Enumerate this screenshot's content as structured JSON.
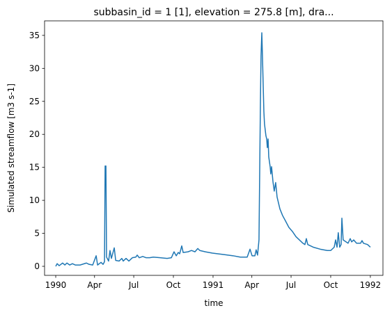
{
  "chart_data": {
    "type": "line",
    "title": "subbasin_id = 1 [1], elevation = 275.8 [m], dra...",
    "x_label": "time",
    "y_label": "Simulated streamflow [m3 s-1]",
    "color": "#1f77b4",
    "x": [
      1990.0,
      1990.009,
      1990.022,
      1990.044,
      1990.058,
      1990.071,
      1990.089,
      1990.106,
      1990.124,
      1990.155,
      1990.195,
      1990.212,
      1990.235,
      1990.257,
      1990.266,
      1990.288,
      1990.301,
      1990.31,
      1990.314,
      1990.319,
      1990.323,
      1990.336,
      1990.345,
      1990.354,
      1990.372,
      1990.381,
      1990.403,
      1990.42,
      1990.429,
      1990.447,
      1990.465,
      1990.487,
      1990.509,
      1990.518,
      1990.531,
      1990.553,
      1990.575,
      1990.597,
      1990.62,
      1990.664,
      1990.708,
      1990.735,
      1990.752,
      1990.766,
      1990.779,
      1990.788,
      1990.801,
      1990.81,
      1990.841,
      1990.863,
      1990.885,
      1990.903,
      1990.916,
      1990.951,
      1990.996,
      1991.062,
      1991.128,
      1991.173,
      1991.217,
      1991.235,
      1991.248,
      1991.266,
      1991.274,
      1991.283,
      1991.292,
      1991.301,
      1991.305,
      1991.31,
      1991.314,
      1991.323,
      1991.327,
      1991.336,
      1991.341,
      1991.345,
      1991.35,
      1991.354,
      1991.363,
      1991.367,
      1991.372,
      1991.381,
      1991.389,
      1991.398,
      1991.407,
      1991.425,
      1991.442,
      1991.46,
      1991.482,
      1991.504,
      1991.527,
      1991.549,
      1991.571,
      1991.584,
      1991.593,
      1991.602,
      1991.637,
      1991.681,
      1991.726,
      1991.748,
      1991.77,
      1991.779,
      1991.788,
      1991.796,
      1991.805,
      1991.814,
      1991.819,
      1991.827,
      1991.858,
      1991.872,
      1991.881,
      1991.894,
      1991.912,
      1991.938,
      1991.947,
      1991.956,
      1991.982,
      1992.0
    ],
    "values": [
      0,
      0.4,
      0.1,
      0.5,
      0.2,
      0.5,
      0.2,
      0.4,
      0.2,
      0.2,
      0.5,
      0.3,
      0.2,
      1.6,
      0.2,
      0.6,
      0.3,
      0.7,
      15.2,
      15.2,
      1.4,
      0.8,
      2.4,
      1.2,
      2.8,
      0.9,
      0.8,
      1.2,
      0.8,
      1.2,
      0.8,
      1.3,
      1.4,
      1.7,
      1.3,
      1.5,
      1.3,
      1.3,
      1.4,
      1.3,
      1.2,
      1.3,
      2.2,
      1.6,
      2.1,
      1.9,
      3.1,
      2.1,
      2.2,
      2.4,
      2.2,
      2.7,
      2.4,
      2.2,
      2.0,
      1.8,
      1.6,
      1.4,
      1.4,
      2.6,
      1.6,
      1.6,
      2.5,
      1.7,
      4.0,
      24.6,
      31.9,
      35.4,
      31.9,
      23.5,
      21.6,
      19.8,
      19.3,
      18.0,
      19.3,
      16.6,
      15.1,
      14.0,
      15.1,
      12.8,
      11.4,
      12.7,
      10.5,
      8.7,
      7.7,
      6.9,
      5.9,
      5.3,
      4.5,
      4.0,
      3.5,
      3.3,
      4.2,
      3.3,
      2.9,
      2.6,
      2.4,
      2.4,
      2.9,
      4.0,
      2.9,
      5.1,
      2.9,
      3.3,
      7.3,
      4.0,
      3.5,
      4.2,
      3.7,
      4.0,
      3.5,
      3.5,
      3.9,
      3.5,
      3.3,
      2.9
    ],
    "xlim": [
      1989.929,
      1992.08
    ],
    "ylim": [
      -1.37,
      37.2
    ],
    "xticks": [
      1990,
      {
        "value": 1990.2466,
        "label": "Apr"
      },
      {
        "value": 1990.4959,
        "label": "Jul"
      },
      {
        "value": 1990.7479,
        "label": "Oct"
      },
      1991,
      {
        "value": 1991.2466,
        "label": "Apr"
      },
      {
        "value": 1991.4959,
        "label": "Jul"
      },
      {
        "value": 1991.7479,
        "label": "Oct"
      },
      1992
    ],
    "yticks": [
      0,
      5,
      10,
      15,
      20,
      25,
      30,
      35
    ],
    "grid": false
  }
}
